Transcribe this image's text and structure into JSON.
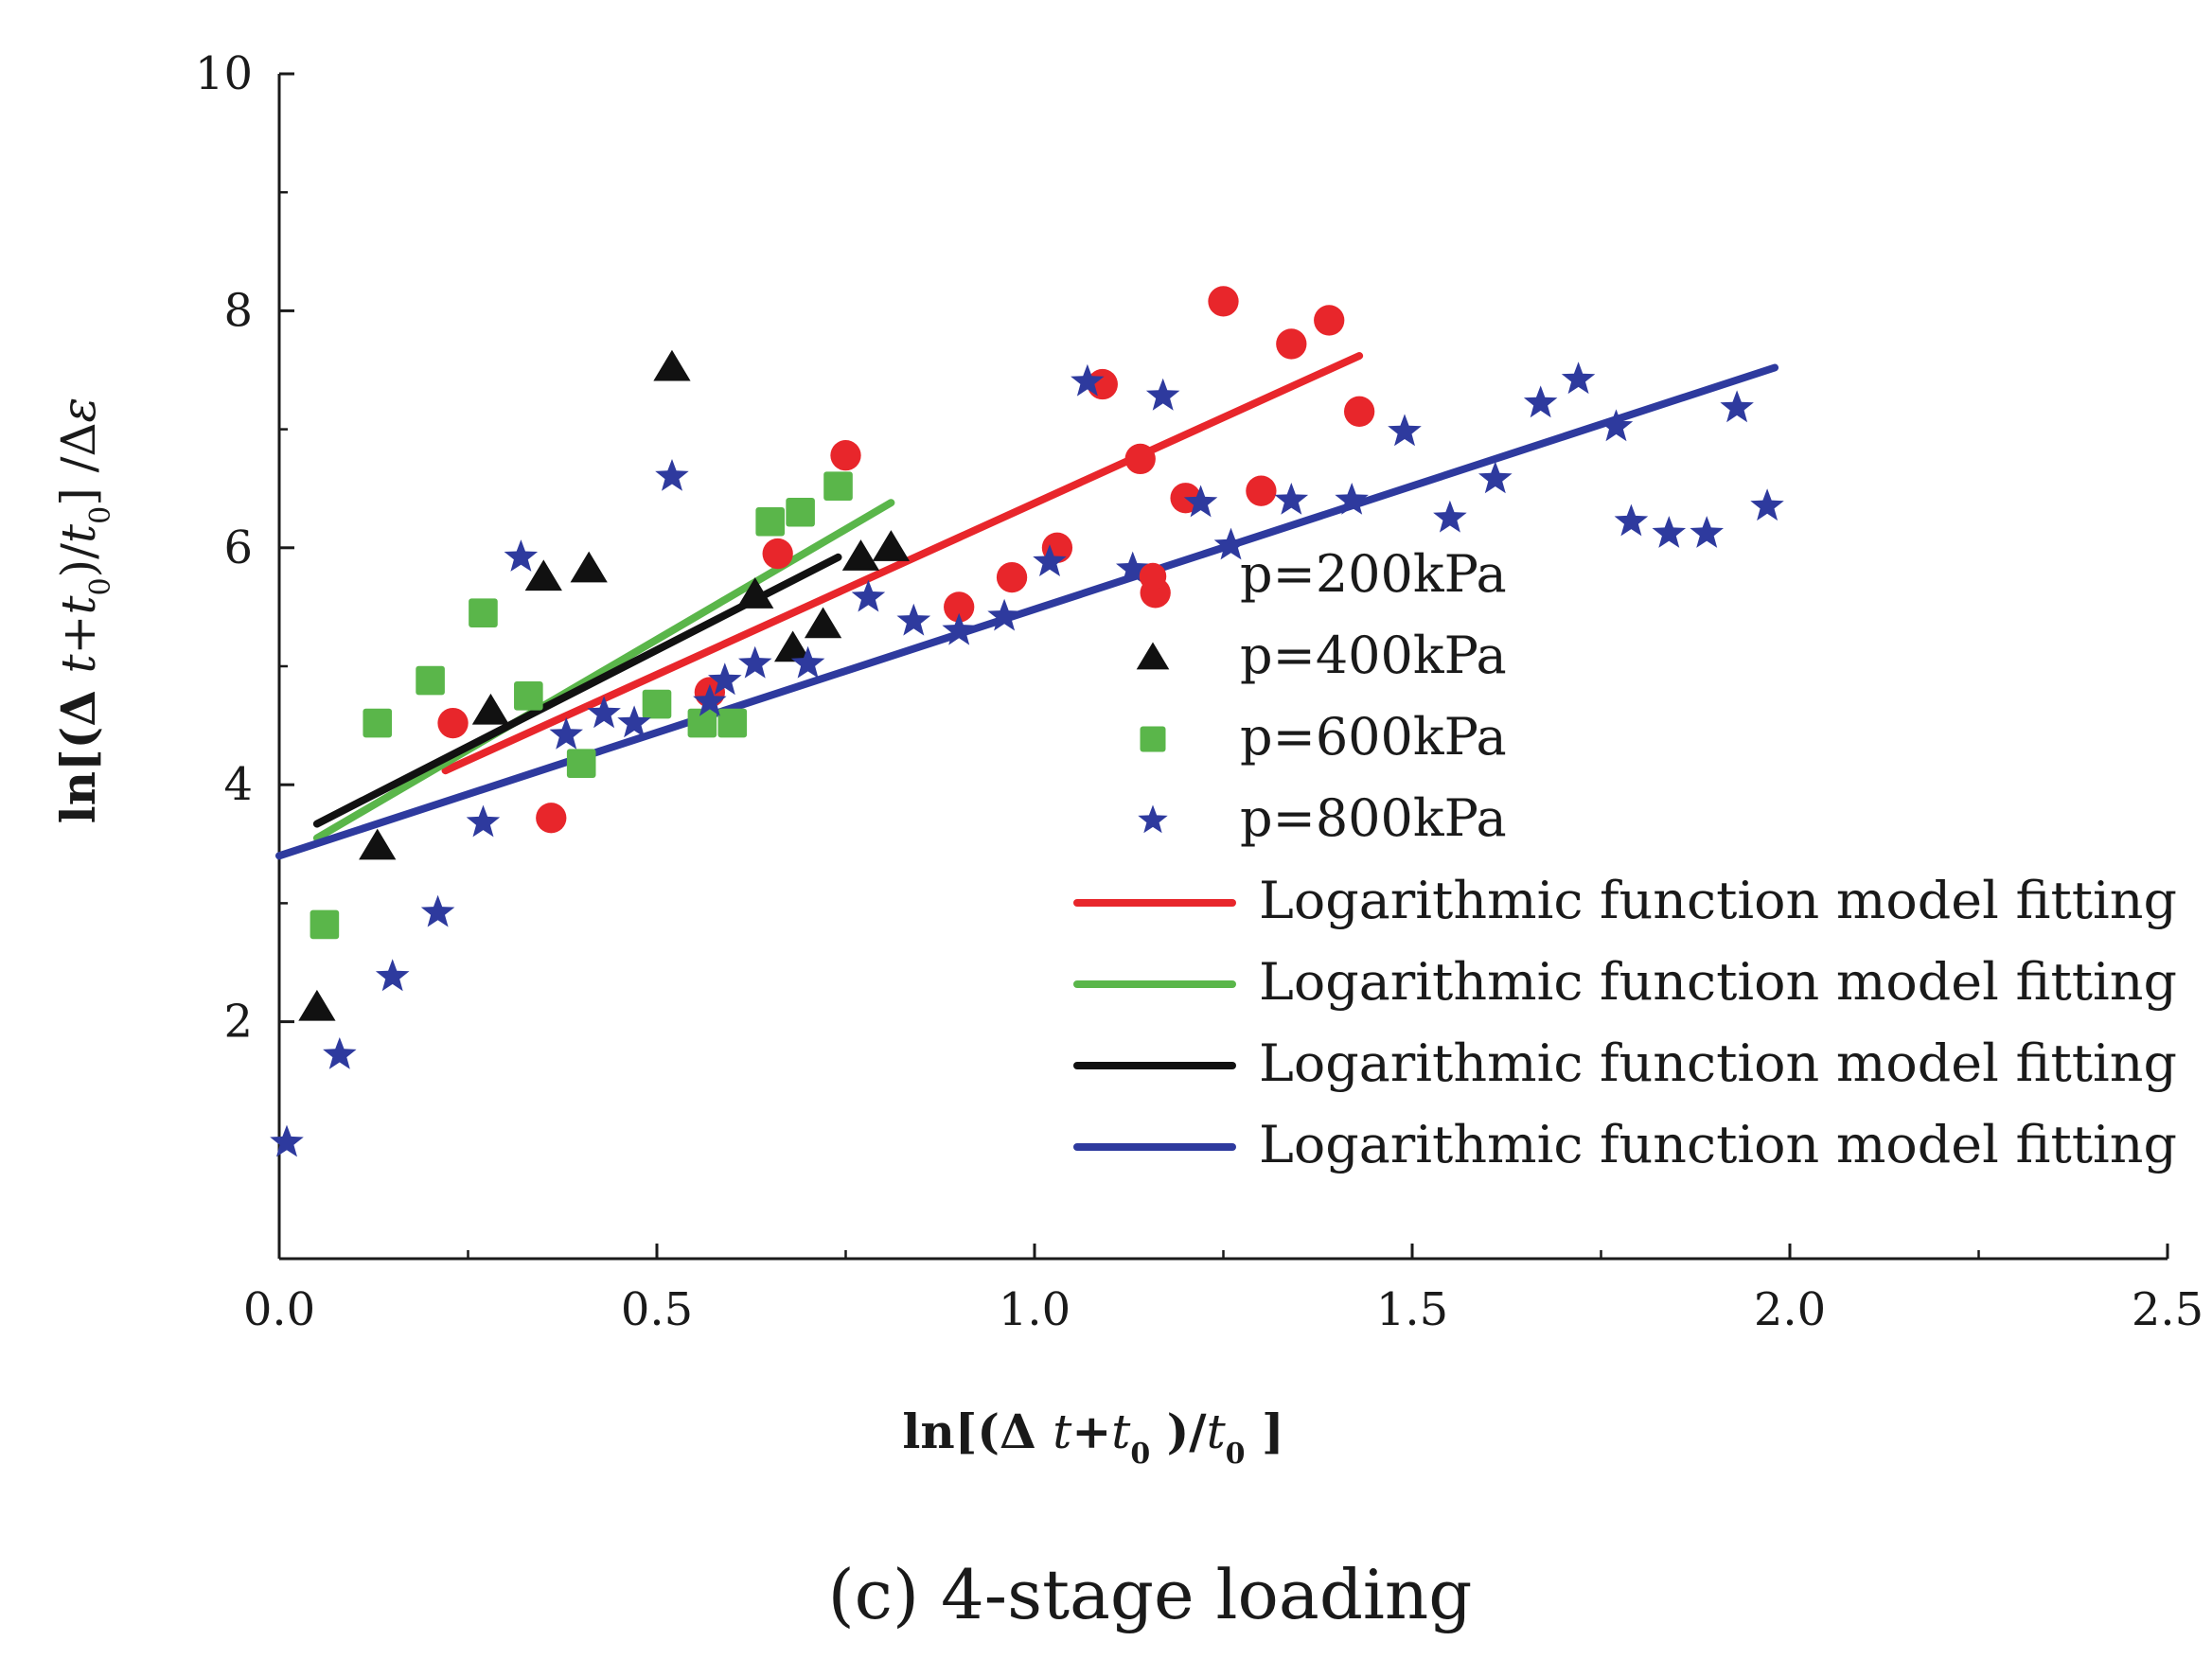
{
  "chart_data": {
    "type": "scatter",
    "title": "",
    "caption": "(c) 4-stage loading",
    "xlabel": "ln[(Δ t+t0 )/t0 ]",
    "ylabel": "ln[(Δ t+t0)/t0] /Δε",
    "xlabel_parts": {
      "a": "ln[(Δ ",
      "b": "t",
      "c": "+",
      "d": "t",
      "e": "0",
      "f": " )/",
      "g": "t",
      "h": "0",
      "i": " ]"
    },
    "ylabel_parts": {
      "a": "ln[(Δ ",
      "b": "t",
      "c": "+",
      "d": "t",
      "e": "0",
      "f": ")/",
      "g": "t",
      "h": "0",
      "i": "] /Δ",
      "j": "ε"
    },
    "xlim": [
      0,
      2.5
    ],
    "ylim": [
      0,
      10
    ],
    "x_ticks": [
      0,
      0.5,
      1,
      1.5,
      2,
      2.5
    ],
    "x_tick_labels": [
      "0.0",
      "0.5",
      "1.0",
      "1.5",
      "2.0",
      "2.5"
    ],
    "y_ticks": [
      2,
      4,
      6,
      8,
      10
    ],
    "y_tick_labels": [
      "2",
      "4",
      "6",
      "8",
      "10"
    ],
    "grid": false,
    "legend_position": "right",
    "series": [
      {
        "name": "p=200kPa",
        "marker": "circle",
        "color": "#e8262b",
        "points": [
          [
            0.23,
            4.52
          ],
          [
            0.36,
            3.72
          ],
          [
            0.57,
            4.78
          ],
          [
            0.66,
            5.95
          ],
          [
            0.75,
            6.78
          ],
          [
            0.9,
            5.5
          ],
          [
            0.97,
            5.75
          ],
          [
            1.03,
            6.0
          ],
          [
            1.09,
            7.38
          ],
          [
            1.14,
            6.75
          ],
          [
            1.16,
            5.62
          ],
          [
            1.2,
            6.42
          ],
          [
            1.25,
            8.08
          ],
          [
            1.3,
            6.48
          ],
          [
            1.34,
            7.72
          ],
          [
            1.39,
            7.92
          ],
          [
            1.43,
            7.15
          ]
        ]
      },
      {
        "name": "p=400kPa",
        "marker": "triangle",
        "color": "#111111",
        "points": [
          [
            0.05,
            2.12
          ],
          [
            0.13,
            3.48
          ],
          [
            0.28,
            4.62
          ],
          [
            0.35,
            5.75
          ],
          [
            0.41,
            5.82
          ],
          [
            0.52,
            7.52
          ],
          [
            0.63,
            5.6
          ],
          [
            0.68,
            5.15
          ],
          [
            0.72,
            5.35
          ],
          [
            0.77,
            5.92
          ],
          [
            0.81,
            6.0
          ]
        ]
      },
      {
        "name": "p=600kPa",
        "marker": "square",
        "color": "#5ab64a",
        "points": [
          [
            0.06,
            2.82
          ],
          [
            0.13,
            4.52
          ],
          [
            0.2,
            4.88
          ],
          [
            0.27,
            5.45
          ],
          [
            0.33,
            4.75
          ],
          [
            0.4,
            4.18
          ],
          [
            0.5,
            4.68
          ],
          [
            0.56,
            4.52
          ],
          [
            0.6,
            4.52
          ],
          [
            0.65,
            6.22
          ],
          [
            0.69,
            6.3
          ],
          [
            0.74,
            6.52
          ]
        ]
      },
      {
        "name": "p=800kPa",
        "marker": "star",
        "color": "#2e3a9e",
        "points": [
          [
            0.01,
            0.98
          ],
          [
            0.08,
            1.72
          ],
          [
            0.15,
            2.38
          ],
          [
            0.21,
            2.92
          ],
          [
            0.27,
            3.68
          ],
          [
            0.32,
            5.92
          ],
          [
            0.38,
            4.42
          ],
          [
            0.43,
            4.6
          ],
          [
            0.47,
            4.52
          ],
          [
            0.52,
            6.6
          ],
          [
            0.57,
            4.7
          ],
          [
            0.59,
            4.88
          ],
          [
            0.63,
            5.02
          ],
          [
            0.7,
            5.02
          ],
          [
            0.78,
            5.58
          ],
          [
            0.84,
            5.38
          ],
          [
            0.9,
            5.3
          ],
          [
            0.96,
            5.42
          ],
          [
            1.02,
            5.88
          ],
          [
            1.07,
            7.4
          ],
          [
            1.13,
            5.82
          ],
          [
            1.17,
            7.28
          ],
          [
            1.22,
            6.38
          ],
          [
            1.26,
            6.02
          ],
          [
            1.34,
            6.4
          ],
          [
            1.42,
            6.4
          ],
          [
            1.49,
            6.98
          ],
          [
            1.55,
            6.25
          ],
          [
            1.61,
            6.58
          ],
          [
            1.67,
            7.22
          ],
          [
            1.72,
            7.42
          ],
          [
            1.77,
            7.02
          ],
          [
            1.79,
            6.22
          ],
          [
            1.84,
            6.12
          ],
          [
            1.89,
            6.12
          ],
          [
            1.93,
            7.18
          ],
          [
            1.97,
            6.35
          ]
        ]
      }
    ],
    "fit_lines": [
      {
        "name": "Logarithmic function model fitting",
        "color": "#e8262b",
        "x": [
          0.22,
          1.43
        ],
        "y": [
          4.12,
          7.62
        ]
      },
      {
        "name": "Logarithmic function model fitting",
        "color": "#5ab64a",
        "x": [
          0.05,
          0.81
        ],
        "y": [
          3.55,
          6.38
        ]
      },
      {
        "name": "Logarithmic function model fitting",
        "color": "#111111",
        "x": [
          0.05,
          0.74
        ],
        "y": [
          3.67,
          5.92
        ]
      },
      {
        "name": "Logarithmic function model fitting",
        "color": "#2e3a9e",
        "x": [
          0.0,
          1.98
        ],
        "y": [
          3.4,
          7.52
        ]
      }
    ]
  }
}
